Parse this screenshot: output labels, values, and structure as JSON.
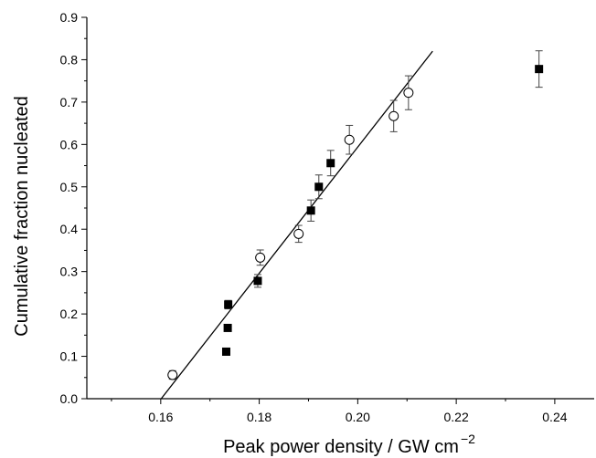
{
  "chart_data": {
    "type": "scatter",
    "title": "",
    "xlabel": "Peak power density / GW cm",
    "xlabel_superscript": "−2",
    "ylabel": "Cumulative fraction nucleated",
    "xlim": [
      0.145,
      0.248
    ],
    "ylim": [
      0,
      0.9
    ],
    "x_ticks": [
      0.16,
      0.18,
      0.2,
      0.22,
      0.24
    ],
    "x_tick_labels": [
      "0.16",
      "0.18",
      "0.20",
      "0.22",
      "0.24"
    ],
    "y_ticks": [
      0.0,
      0.1,
      0.2,
      0.3,
      0.4,
      0.5,
      0.6,
      0.7,
      0.8,
      0.9
    ],
    "y_tick_labels": [
      "0.0",
      "0.1",
      "0.2",
      "0.3",
      "0.4",
      "0.5",
      "0.6",
      "0.7",
      "0.8",
      "0.9"
    ],
    "grid": false,
    "legend": "none",
    "series": [
      {
        "marker": "filled-square",
        "color": "#000000",
        "points": [
          {
            "x": 0.1733,
            "y": 0.111,
            "err": 0
          },
          {
            "x": 0.1736,
            "y": 0.167,
            "err": 0
          },
          {
            "x": 0.1737,
            "y": 0.222,
            "err": 0.01
          },
          {
            "x": 0.1797,
            "y": 0.278,
            "err": 0.015
          },
          {
            "x": 0.1905,
            "y": 0.444,
            "err": 0.025
          },
          {
            "x": 0.1921,
            "y": 0.5,
            "err": 0.028
          },
          {
            "x": 0.1945,
            "y": 0.556,
            "err": 0.03
          },
          {
            "x": 0.2368,
            "y": 0.778,
            "err": 0.043
          }
        ]
      },
      {
        "marker": "open-circle",
        "color": "#000000",
        "points": [
          {
            "x": 0.1624,
            "y": 0.056,
            "err": 0.01
          },
          {
            "x": 0.1802,
            "y": 0.333,
            "err": 0.018
          },
          {
            "x": 0.188,
            "y": 0.389,
            "err": 0.02
          },
          {
            "x": 0.1983,
            "y": 0.611,
            "err": 0.034
          },
          {
            "x": 0.2073,
            "y": 0.667,
            "err": 0.037
          },
          {
            "x": 0.2103,
            "y": 0.722,
            "err": 0.04
          }
        ]
      }
    ],
    "fit_line": {
      "x": [
        0.1601,
        0.2152
      ],
      "y": [
        0.0,
        0.82
      ],
      "color": "#000000"
    }
  }
}
